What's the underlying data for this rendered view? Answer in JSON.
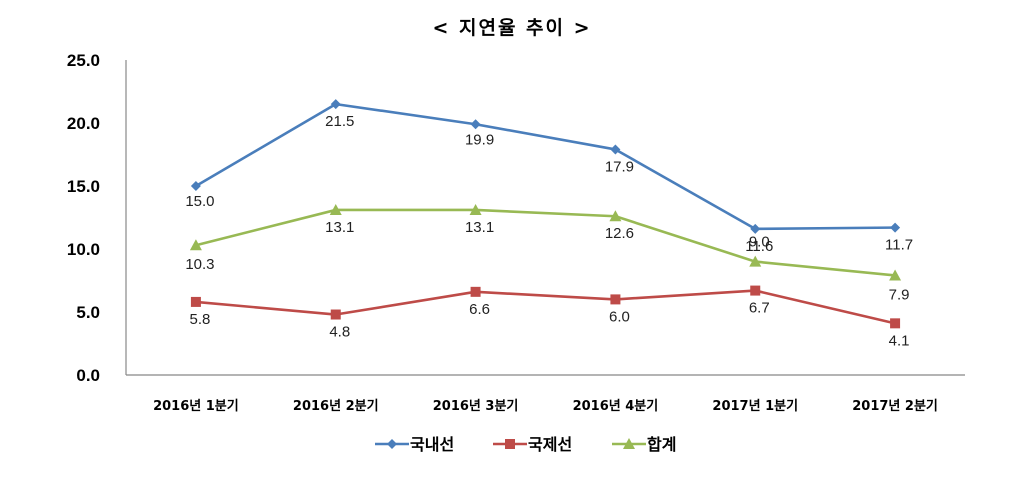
{
  "chart_data": {
    "type": "line",
    "title": "< 지연율 추이 >",
    "categories": [
      "2016년 1분기",
      "2016년 2분기",
      "2016년 3분기",
      "2016년 4분기",
      "2017년 1분기",
      "2017년 2분기"
    ],
    "ylim": [
      0,
      25
    ],
    "yticks": [
      "0.0",
      "5.0",
      "10.0",
      "15.0",
      "20.0",
      "25.0"
    ],
    "grid": false,
    "legend": "bottom",
    "series": [
      {
        "name": "국내선",
        "values": [
          15.0,
          21.5,
          19.9,
          17.9,
          11.6,
          11.7
        ],
        "labels": [
          "15.0",
          "21.5",
          "19.9",
          "17.9",
          "11.6",
          "11.7"
        ],
        "color": "#4a7ebb",
        "marker": "diamond"
      },
      {
        "name": "국제선",
        "values": [
          5.8,
          4.8,
          6.6,
          6.0,
          6.7,
          4.1
        ],
        "labels": [
          "5.8",
          "4.8",
          "6.6",
          "6.0",
          "6.7",
          "4.1"
        ],
        "color": "#be4b48",
        "marker": "square"
      },
      {
        "name": "합계",
        "values": [
          10.3,
          13.1,
          13.1,
          12.6,
          9.0,
          7.9
        ],
        "labels": [
          "10.3",
          "13.1",
          "13.1",
          "12.6",
          "9.0",
          "7.9"
        ],
        "color": "#98b954",
        "marker": "triangle"
      }
    ]
  }
}
